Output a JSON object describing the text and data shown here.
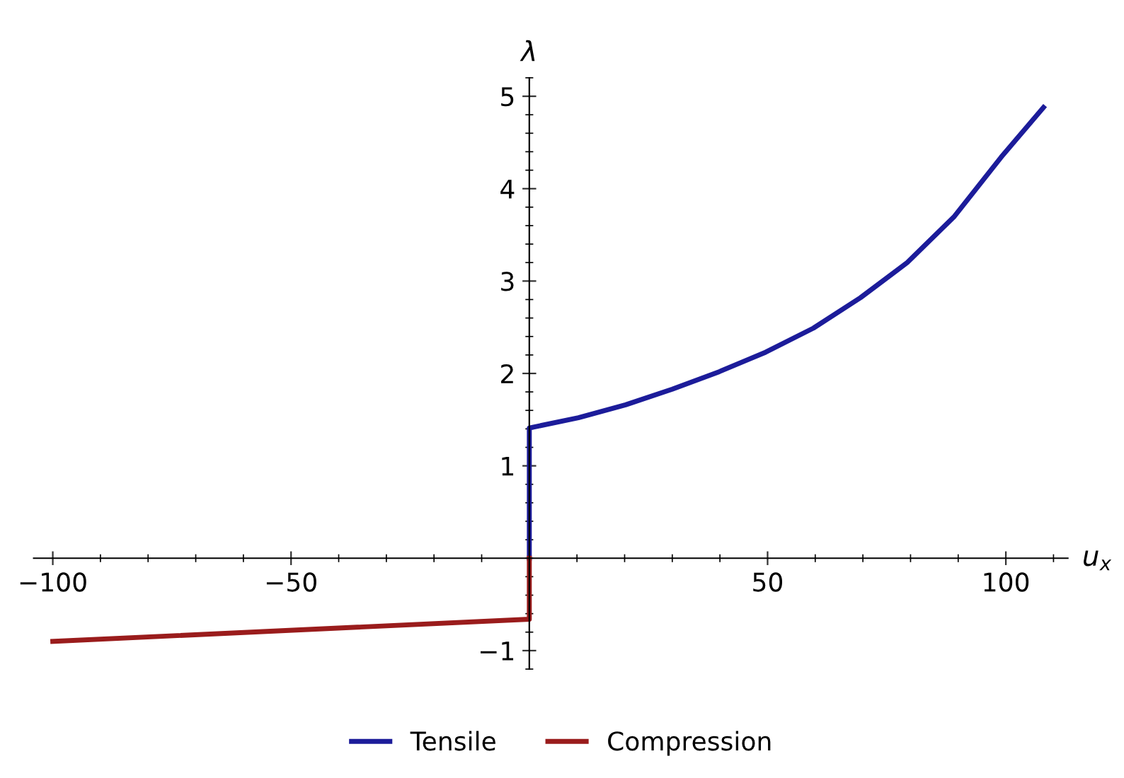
{
  "chart_data": {
    "type": "line",
    "xlabel": "u$_{x}$",
    "ylabel": "λ",
    "xlim": [
      -104,
      113
    ],
    "ylim": [
      -1.2,
      5.2
    ],
    "xticks": [
      {
        "value": -100,
        "label": "−100"
      },
      {
        "value": -50,
        "label": "−50"
      },
      50,
      100
    ],
    "yticks": [
      {
        "value": -1,
        "label": "−1"
      },
      1,
      2,
      3,
      4,
      5
    ],
    "grid": false,
    "legend": "bottom",
    "marker": "none",
    "line_style": "solid",
    "series": [
      {
        "name": "Tensile",
        "color": "#1c1c9a",
        "x": [
          0,
          0,
          10.3,
          20.2,
          30,
          39.9,
          49.6,
          59.6,
          69.5,
          79.3,
          89.2,
          99,
          107.9
        ],
        "values": [
          0,
          1.41,
          1.52,
          1.66,
          1.83,
          2.02,
          2.23,
          2.49,
          2.82,
          3.2,
          3.7,
          4.34,
          4.88
        ]
      },
      {
        "name": "Compression",
        "color": "#9a1c1c",
        "x": [
          0,
          0,
          -100
        ],
        "values": [
          0,
          -0.66,
          -0.9
        ]
      }
    ]
  }
}
